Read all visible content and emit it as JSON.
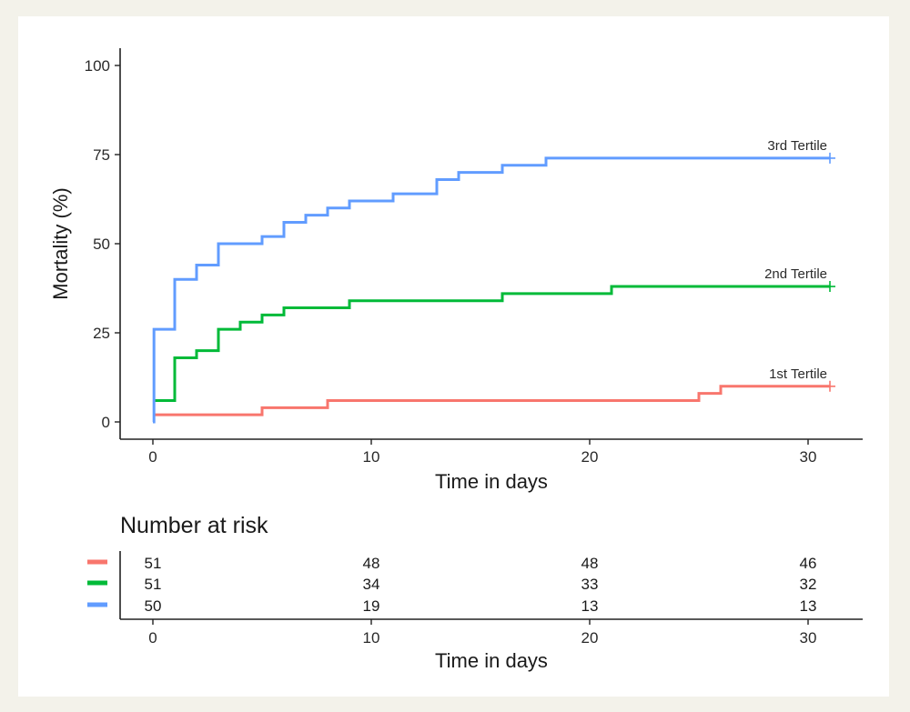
{
  "chart_data": {
    "type": "line",
    "step": true,
    "title": "",
    "xlabel": "Time in days",
    "ylabel": "Mortality (%)",
    "xlim": [
      -1.5,
      32
    ],
    "ylim": [
      -5,
      105
    ],
    "x_ticks": [
      "0",
      "10",
      "20",
      "30"
    ],
    "y_ticks": [
      "0",
      "25",
      "50",
      "75",
      "100"
    ],
    "grid": false,
    "series": [
      {
        "name": "1st Tertile",
        "color": "#f8766d",
        "x": [
          0,
          5,
          8,
          25,
          26,
          31
        ],
        "y": [
          2,
          4,
          6,
          8,
          10,
          10
        ]
      },
      {
        "name": "2nd Tertile",
        "color": "#00ba38",
        "x": [
          0,
          1,
          2,
          3,
          4,
          5,
          6,
          9,
          16,
          21,
          31
        ],
        "y": [
          6,
          18,
          20,
          26,
          28,
          30,
          32,
          34,
          36,
          38,
          38
        ]
      },
      {
        "name": "3rd Tertile",
        "color": "#619cff",
        "x": [
          0,
          0.05,
          1,
          2,
          3,
          5,
          6,
          7,
          8,
          9,
          11,
          13,
          14,
          16,
          18,
          31
        ],
        "y": [
          0,
          26,
          40,
          44,
          50,
          52,
          56,
          58,
          60,
          62,
          64,
          68,
          70,
          72,
          74,
          74
        ]
      }
    ]
  },
  "risk_table": {
    "title": "Number at risk",
    "xlabel": "Time in days",
    "x_ticks": [
      "0",
      "10",
      "20",
      "30"
    ],
    "rows": [
      {
        "color": "#f8766d",
        "values": [
          "51",
          "48",
          "48",
          "46"
        ]
      },
      {
        "color": "#00ba38",
        "values": [
          "51",
          "34",
          "33",
          "32"
        ]
      },
      {
        "color": "#619cff",
        "values": [
          "50",
          "19",
          "13",
          "13"
        ]
      }
    ]
  }
}
